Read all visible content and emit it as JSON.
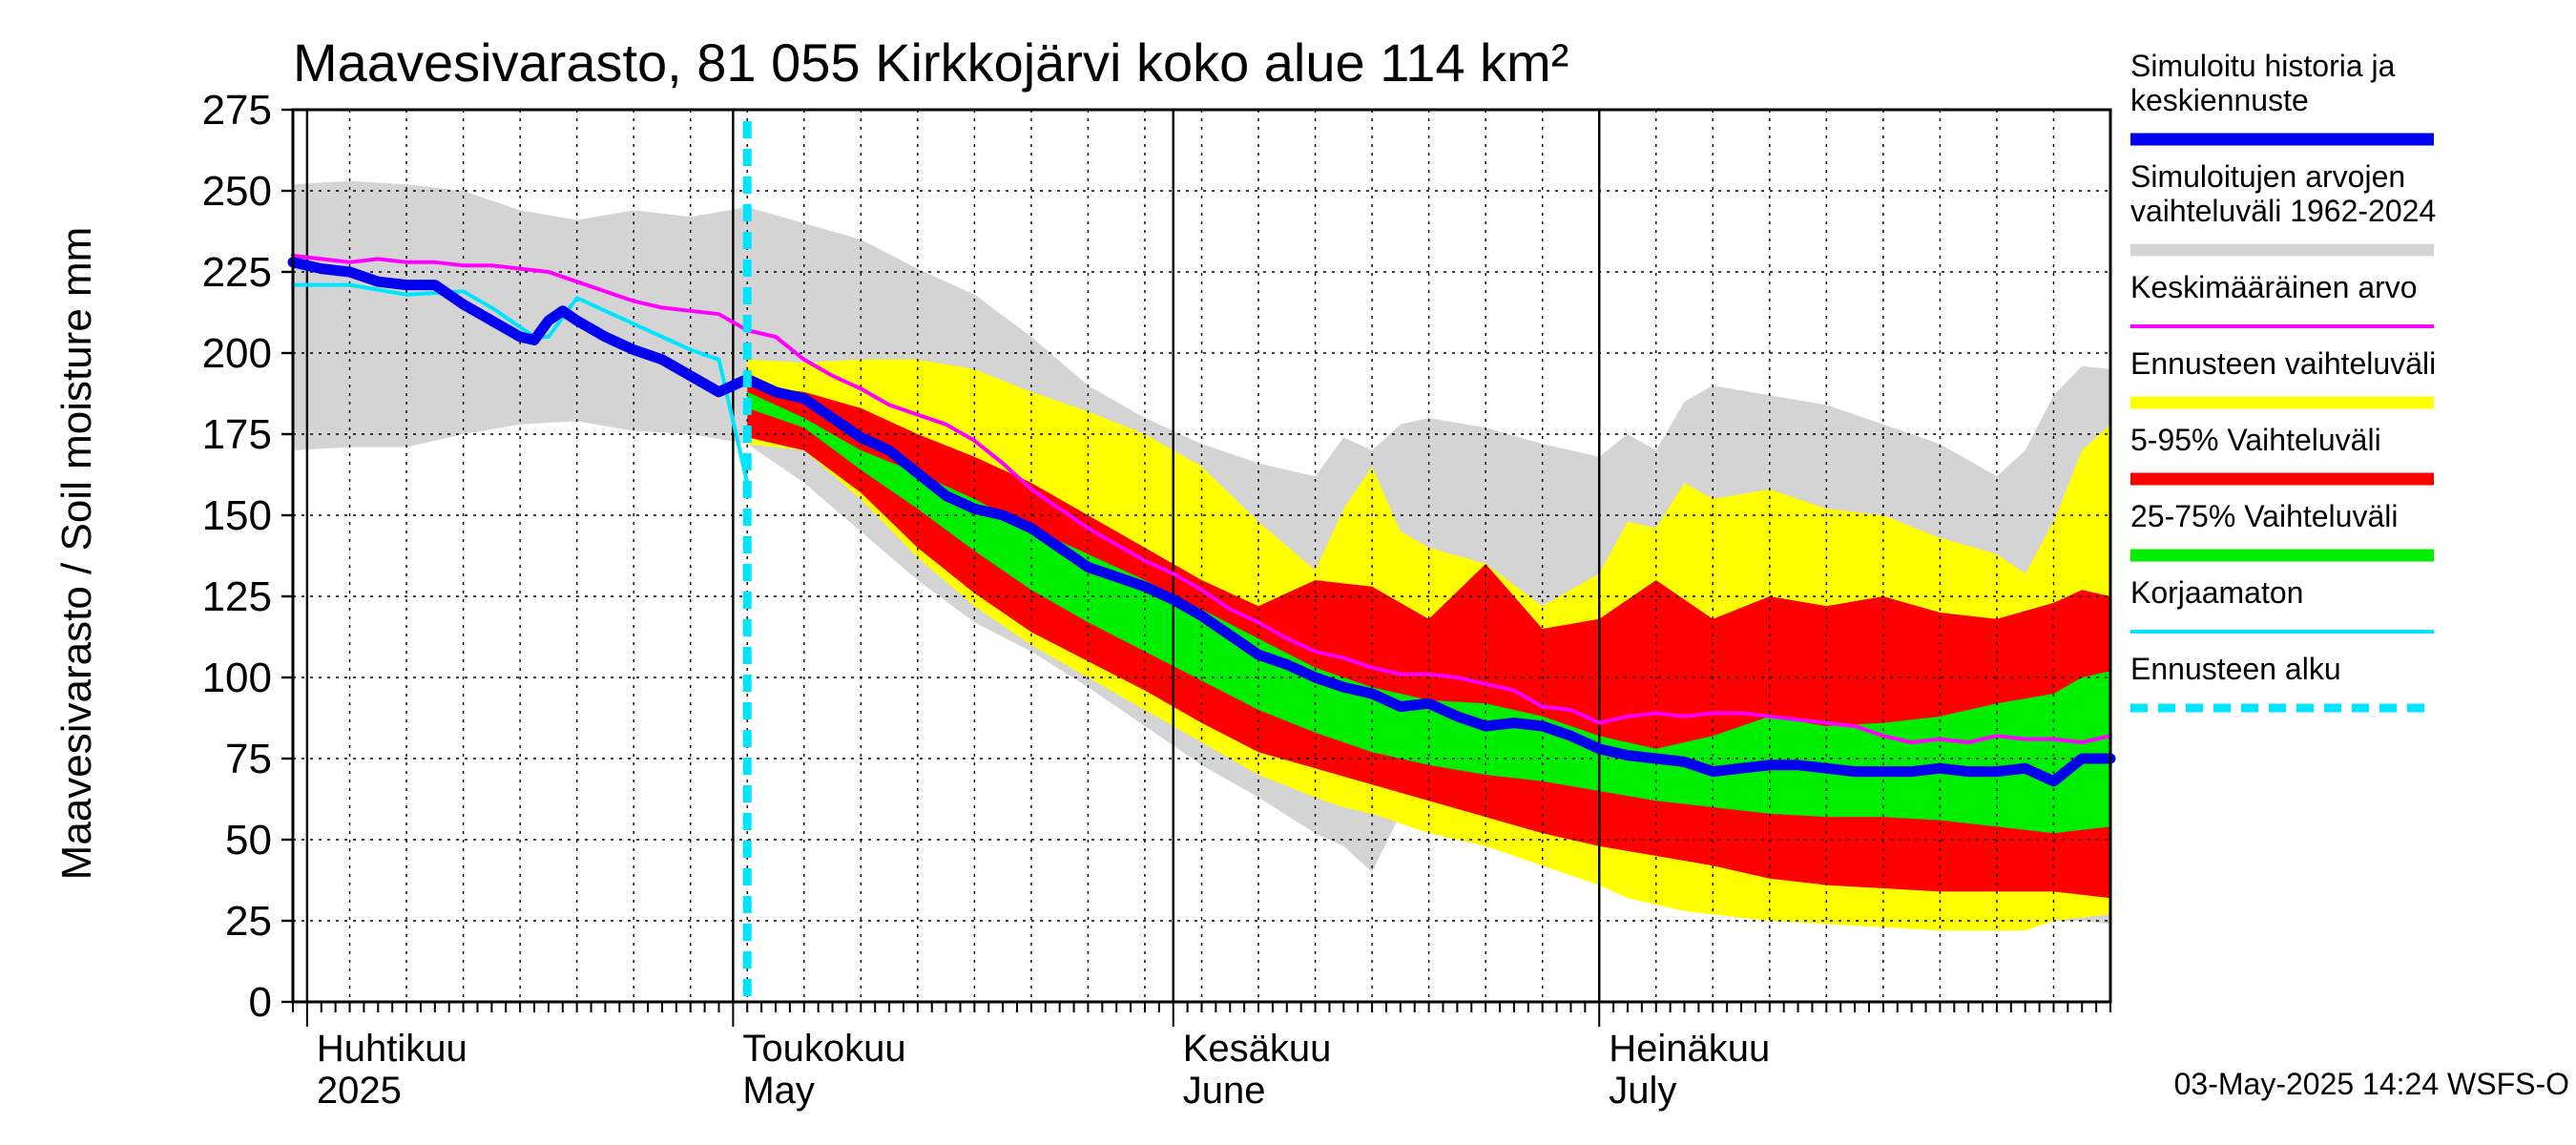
{
  "chart_data": {
    "type": "area",
    "title": "Maavesivarasto, 81 055 Kirkkojärvi koko alue 114 km²",
    "ylabel": "Maavesivarasto / Soil moisture   mm",
    "ylim": [
      0,
      275
    ],
    "yticks": [
      0,
      25,
      50,
      75,
      100,
      125,
      150,
      175,
      200,
      225,
      250,
      275
    ],
    "xlim_days": [
      0,
      128
    ],
    "x_unit": "days since 2025-03-31",
    "month_labels": [
      {
        "fi": "Huhtikuu",
        "en": "2025",
        "day": 1
      },
      {
        "fi": "Toukokuu",
        "en": "May",
        "day": 31
      },
      {
        "fi": "Kesäkuu",
        "en": "June",
        "day": 62
      },
      {
        "fi": "Heinäkuu",
        "en": "July",
        "day": 92
      }
    ],
    "month_boundaries": [
      1,
      31,
      62,
      92
    ],
    "forecast_start_day": 32,
    "timestamp": "03-May-2025 14:24 WSFS-O",
    "series": [
      {
        "name": "range_hist",
        "color": "#d4d4d4",
        "x": [
          0,
          4,
          8,
          12,
          16,
          20,
          24,
          28,
          32,
          36,
          40,
          44,
          48,
          52,
          56,
          60,
          64,
          68,
          72,
          74,
          76,
          78,
          80,
          84,
          88,
          92,
          94,
          96,
          98,
          100,
          104,
          108,
          112,
          116,
          120,
          122,
          124,
          126,
          128
        ],
        "upper": [
          252,
          253,
          252,
          250,
          244,
          241,
          244,
          242,
          245,
          240,
          235,
          226,
          218,
          205,
          190,
          180,
          172,
          166,
          162,
          174,
          170,
          178,
          180,
          177,
          172,
          168,
          175,
          170,
          185,
          190,
          187,
          184,
          178,
          172,
          162,
          170,
          187,
          196,
          195
        ],
        "lower": [
          170,
          171,
          171,
          175,
          178,
          179,
          176,
          175,
          172,
          160,
          145,
          130,
          117,
          108,
          97,
          85,
          73,
          63,
          52,
          48,
          40,
          58,
          60,
          57,
          50,
          42,
          38,
          36,
          32,
          30,
          30,
          28,
          27,
          25,
          24,
          25,
          25,
          25,
          24
        ]
      },
      {
        "name": "yellow_range",
        "color": "#ffff00",
        "x": [
          32,
          36,
          40,
          44,
          48,
          52,
          56,
          60,
          64,
          68,
          72,
          74,
          76,
          78,
          80,
          84,
          88,
          92,
          94,
          96,
          98,
          100,
          104,
          108,
          112,
          116,
          120,
          122,
          124,
          126,
          128
        ],
        "upper": [
          198,
          197,
          198,
          198,
          195,
          188,
          182,
          175,
          165,
          148,
          133,
          152,
          165,
          145,
          140,
          135,
          122,
          132,
          148,
          146,
          160,
          155,
          158,
          152,
          150,
          143,
          138,
          132,
          148,
          170,
          178
        ],
        "lower": [
          172,
          170,
          155,
          137,
          122,
          110,
          100,
          90,
          80,
          70,
          63,
          60,
          58,
          55,
          52,
          48,
          42,
          36,
          32,
          30,
          28,
          27,
          25,
          24,
          23,
          22,
          22,
          22,
          25,
          26,
          27
        ]
      },
      {
        "name": "p5_95",
        "color": "#ff0000",
        "x": [
          32,
          36,
          40,
          44,
          48,
          52,
          56,
          60,
          64,
          68,
          72,
          76,
          80,
          84,
          88,
          92,
          96,
          100,
          104,
          108,
          112,
          116,
          120,
          124,
          126,
          128
        ],
        "upper": [
          190,
          188,
          183,
          175,
          168,
          160,
          150,
          140,
          130,
          122,
          130,
          128,
          118,
          135,
          115,
          118,
          130,
          118,
          125,
          122,
          125,
          120,
          118,
          123,
          127,
          125
        ],
        "lower": [
          174,
          170,
          157,
          140,
          126,
          114,
          105,
          96,
          86,
          77,
          72,
          67,
          62,
          57,
          52,
          48,
          45,
          42,
          38,
          36,
          35,
          34,
          34,
          34,
          33,
          32
        ]
      },
      {
        "name": "p25_75",
        "color": "#00ee00",
        "x": [
          32,
          36,
          40,
          44,
          48,
          52,
          56,
          60,
          64,
          68,
          72,
          76,
          80,
          84,
          88,
          92,
          96,
          100,
          104,
          108,
          112,
          116,
          120,
          124,
          126,
          128
        ],
        "upper": [
          188,
          180,
          170,
          163,
          155,
          146,
          138,
          130,
          121,
          112,
          103,
          97,
          93,
          92,
          88,
          82,
          78,
          82,
          88,
          85,
          86,
          88,
          92,
          95,
          100,
          102
        ],
        "lower": [
          183,
          177,
          164,
          152,
          139,
          127,
          117,
          108,
          99,
          90,
          83,
          77,
          73,
          70,
          68,
          65,
          62,
          60,
          58,
          57,
          57,
          56,
          54,
          52,
          53,
          54
        ]
      },
      {
        "name": "mean",
        "color": "#ff00ff",
        "x": [
          0,
          2,
          4,
          6,
          8,
          10,
          12,
          14,
          16,
          18,
          20,
          22,
          24,
          26,
          28,
          30,
          32,
          34,
          36,
          38,
          40,
          42,
          44,
          46,
          48,
          50,
          52,
          54,
          56,
          58,
          60,
          62,
          64,
          66,
          68,
          70,
          72,
          74,
          76,
          78,
          80,
          82,
          84,
          86,
          88,
          90,
          92,
          94,
          96,
          98,
          100,
          102,
          104,
          106,
          108,
          110,
          112,
          114,
          116,
          118,
          120,
          122,
          124,
          126,
          128
        ],
        "y": [
          230,
          229,
          228,
          229,
          228,
          228,
          227,
          227,
          226,
          225,
          222,
          219,
          216,
          214,
          213,
          212,
          207,
          205,
          198,
          193,
          189,
          184,
          181,
          178,
          173,
          166,
          158,
          152,
          146,
          141,
          136,
          132,
          127,
          121,
          117,
          112,
          108,
          106,
          103,
          101,
          101,
          100,
          98,
          96,
          91,
          90,
          86,
          88,
          89,
          88,
          89,
          89,
          88,
          87,
          86,
          85,
          82,
          80,
          81,
          80,
          82,
          81,
          81,
          80,
          82
        ]
      },
      {
        "name": "uncorrected",
        "color": "#00e5ff",
        "x": [
          0,
          4,
          8,
          12,
          14,
          16,
          17,
          18,
          20,
          22,
          24,
          26,
          28,
          30,
          32
        ],
        "y": [
          221,
          221,
          218,
          219,
          214,
          208,
          205,
          205,
          217,
          213,
          209,
          205,
          201,
          198,
          160
        ]
      },
      {
        "name": "simulated",
        "color": "#0000ee",
        "x": [
          0,
          2,
          4,
          6,
          8,
          10,
          12,
          14,
          16,
          17,
          18,
          19,
          20,
          22,
          24,
          26,
          28,
          30,
          32,
          34,
          36,
          38,
          40,
          42,
          44,
          46,
          48,
          50,
          52,
          54,
          56,
          58,
          60,
          62,
          64,
          66,
          68,
          70,
          72,
          74,
          76,
          78,
          80,
          82,
          84,
          86,
          88,
          90,
          92,
          94,
          96,
          98,
          100,
          102,
          104,
          106,
          108,
          110,
          112,
          114,
          116,
          118,
          120,
          122,
          124,
          126,
          128
        ],
        "y": [
          228,
          226,
          225,
          222,
          221,
          221,
          215,
          210,
          205,
          204,
          210,
          213,
          210,
          205,
          201,
          198,
          193,
          188,
          192,
          188,
          186,
          180,
          174,
          170,
          163,
          156,
          152,
          150,
          146,
          140,
          134,
          131,
          128,
          124,
          119,
          113,
          107,
          104,
          100,
          97,
          95,
          91,
          92,
          88,
          85,
          86,
          85,
          82,
          78,
          76,
          75,
          74,
          71,
          72,
          73,
          73,
          72,
          71,
          71,
          71,
          72,
          71,
          71,
          72,
          68,
          75,
          75
        ]
      }
    ],
    "legend": [
      {
        "label": "Simuloitu historia ja keskiennuste",
        "label_lines": [
          "Simuloitu historia ja",
          "keskiennuste"
        ],
        "color": "#0000ee",
        "style": "thick"
      },
      {
        "label": "Simuloitujen arvojen vaihteluväli 1962-2024",
        "label_lines": [
          "Simuloitujen arvojen",
          "vaihteluväli 1962-2024"
        ],
        "color": "#d4d4d4",
        "style": "thick"
      },
      {
        "label": "Keskimääräinen arvo",
        "label_lines": [
          "Keskimääräinen arvo"
        ],
        "color": "#ff00ff",
        "style": "thin"
      },
      {
        "label": "Ennusteen vaihteluväli",
        "label_lines": [
          "Ennusteen vaihteluväli"
        ],
        "color": "#ffff00",
        "style": "thick"
      },
      {
        "label": "5-95% Vaihteluväli",
        "label_lines": [
          "5-95% Vaihteluväli"
        ],
        "color": "#ff0000",
        "style": "thick"
      },
      {
        "label": "25-75% Vaihteluväli",
        "label_lines": [
          "25-75% Vaihteluväli"
        ],
        "color": "#00ee00",
        "style": "thick"
      },
      {
        "label": "Korjaamaton",
        "label_lines": [
          "Korjaamaton"
        ],
        "color": "#00e5ff",
        "style": "thin"
      },
      {
        "label": "Ennusteen alku",
        "label_lines": [
          "Ennusteen alku"
        ],
        "color": "#00e5ff",
        "style": "dashed"
      }
    ]
  }
}
